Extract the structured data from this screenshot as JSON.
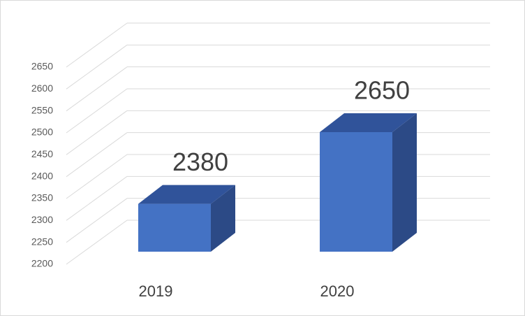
{
  "chart_data": {
    "type": "bar",
    "categories": [
      "2019",
      "2020"
    ],
    "values": [
      2380,
      2650
    ],
    "color": "#4472c4",
    "ylim": [
      2200,
      2650
    ],
    "yticks": [
      2200,
      2250,
      2300,
      2350,
      2400,
      2450,
      2500,
      2550,
      2600,
      2650
    ],
    "grid": true
  }
}
